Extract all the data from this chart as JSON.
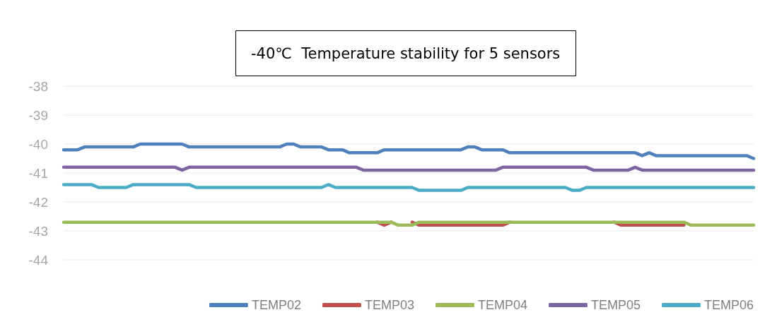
{
  "chart_data": {
    "type": "line",
    "title": "-40℃  Temperature stability for 5 sensors",
    "categories": [
      null,
      null,
      null,
      null,
      null,
      null,
      null,
      null,
      null,
      null,
      null,
      null,
      null,
      null,
      null,
      null,
      null,
      null,
      null,
      null,
      null,
      null,
      null,
      null,
      null,
      null,
      null,
      null,
      null,
      null,
      null,
      null,
      null,
      null,
      null,
      null,
      null,
      null,
      null,
      null,
      null,
      null,
      null,
      null,
      null,
      null,
      null,
      null,
      null,
      null,
      null,
      null,
      null,
      null,
      null,
      null,
      null,
      null,
      null,
      null,
      null,
      null,
      null,
      null,
      null,
      null,
      null,
      null,
      null,
      null,
      null,
      null,
      null,
      null,
      null,
      null,
      null,
      null,
      null,
      null,
      null,
      null,
      null,
      null,
      null,
      null,
      null,
      null,
      null,
      null,
      null,
      null,
      null,
      null,
      null,
      null,
      null,
      null,
      null,
      null
    ],
    "series": [
      {
        "name": "TEMP02",
        "color": "#4f81bd",
        "values": [
          -40.2,
          -40.2,
          -40.2,
          -40.1,
          -40.1,
          -40.1,
          -40.1,
          -40.1,
          -40.1,
          -40.1,
          -40.1,
          -40,
          -40,
          -40,
          -40,
          -40,
          -40,
          -40,
          -40.1,
          -40.1,
          -40.1,
          -40.1,
          -40.1,
          -40.1,
          -40.1,
          -40.1,
          -40.1,
          -40.1,
          -40.1,
          -40.1,
          -40.1,
          -40.1,
          -40,
          -40,
          -40.1,
          -40.1,
          -40.1,
          -40.1,
          -40.2,
          -40.2,
          -40.2,
          -40.3,
          -40.3,
          -40.3,
          -40.3,
          -40.3,
          -40.2,
          -40.2,
          -40.2,
          -40.2,
          -40.2,
          -40.2,
          -40.2,
          -40.2,
          -40.2,
          -40.2,
          -40.2,
          -40.2,
          -40.1,
          -40.1,
          -40.2,
          -40.2,
          -40.2,
          -40.2,
          -40.3,
          -40.3,
          -40.3,
          -40.3,
          -40.3,
          -40.3,
          -40.3,
          -40.3,
          -40.3,
          -40.3,
          -40.3,
          -40.3,
          -40.3,
          -40.3,
          -40.3,
          -40.3,
          -40.3,
          -40.3,
          -40.3,
          -40.4,
          -40.3,
          -40.4,
          -40.4,
          -40.4,
          -40.4,
          -40.4,
          -40.4,
          -40.4,
          -40.4,
          -40.4,
          -40.4,
          -40.4,
          -40.4,
          -40.4,
          -40.4,
          -40.5
        ]
      },
      {
        "name": "TEMP03",
        "color": "#c0504d",
        "values": [
          null,
          null,
          null,
          null,
          null,
          null,
          null,
          null,
          null,
          null,
          null,
          null,
          null,
          null,
          null,
          null,
          null,
          null,
          null,
          null,
          null,
          null,
          null,
          null,
          null,
          null,
          null,
          null,
          null,
          null,
          null,
          null,
          null,
          null,
          null,
          null,
          null,
          null,
          null,
          null,
          null,
          null,
          null,
          null,
          null,
          -42.7,
          -42.8,
          -42.7,
          null,
          null,
          -42.7,
          -42.8,
          -42.8,
          -42.8,
          -42.8,
          -42.8,
          -42.8,
          -42.8,
          -42.8,
          -42.8,
          -42.8,
          -42.8,
          -42.8,
          -42.8,
          -42.7,
          null,
          null,
          null,
          null,
          null,
          null,
          null,
          null,
          null,
          null,
          null,
          null,
          null,
          null,
          -42.7,
          -42.8,
          -42.8,
          -42.8,
          -42.8,
          -42.8,
          -42.8,
          -42.8,
          -42.8,
          -42.8,
          -42.8,
          null,
          null,
          null,
          null,
          null,
          null,
          null,
          null,
          null,
          null
        ]
      },
      {
        "name": "TEMP04",
        "color": "#9bbb59",
        "values": [
          -42.7,
          -42.7,
          -42.7,
          -42.7,
          -42.7,
          -42.7,
          -42.7,
          -42.7,
          -42.7,
          -42.7,
          -42.7,
          -42.7,
          -42.7,
          -42.7,
          -42.7,
          -42.7,
          -42.7,
          -42.7,
          -42.7,
          -42.7,
          -42.7,
          -42.7,
          -42.7,
          -42.7,
          -42.7,
          -42.7,
          -42.7,
          -42.7,
          -42.7,
          -42.7,
          -42.7,
          -42.7,
          -42.7,
          -42.7,
          -42.7,
          -42.7,
          -42.7,
          -42.7,
          -42.7,
          -42.7,
          -42.7,
          -42.7,
          -42.7,
          -42.7,
          -42.7,
          -42.7,
          -42.7,
          -42.7,
          -42.8,
          -42.8,
          -42.8,
          -42.7,
          -42.7,
          -42.7,
          -42.7,
          -42.7,
          -42.7,
          -42.7,
          -42.7,
          -42.7,
          -42.7,
          -42.7,
          -42.7,
          -42.7,
          -42.7,
          -42.7,
          -42.7,
          -42.7,
          -42.7,
          -42.7,
          -42.7,
          -42.7,
          -42.7,
          -42.7,
          -42.7,
          -42.7,
          -42.7,
          -42.7,
          -42.7,
          -42.7,
          -42.7,
          -42.7,
          -42.7,
          -42.7,
          -42.7,
          -42.7,
          -42.7,
          -42.7,
          -42.7,
          -42.7,
          -42.8,
          -42.8,
          -42.8,
          -42.8,
          -42.8,
          -42.8,
          -42.8,
          -42.8,
          -42.8,
          -42.8
        ]
      },
      {
        "name": "TEMP05",
        "color": "#8064a2",
        "values": [
          -40.8,
          -40.8,
          -40.8,
          -40.8,
          -40.8,
          -40.8,
          -40.8,
          -40.8,
          -40.8,
          -40.8,
          -40.8,
          -40.8,
          -40.8,
          -40.8,
          -40.8,
          -40.8,
          -40.8,
          -40.9,
          -40.8,
          -40.8,
          -40.8,
          -40.8,
          -40.8,
          -40.8,
          -40.8,
          -40.8,
          -40.8,
          -40.8,
          -40.8,
          -40.8,
          -40.8,
          -40.8,
          -40.8,
          -40.8,
          -40.8,
          -40.8,
          -40.8,
          -40.8,
          -40.8,
          -40.8,
          -40.8,
          -40.8,
          -40.8,
          -40.9,
          -40.9,
          -40.9,
          -40.9,
          -40.9,
          -40.9,
          -40.9,
          -40.9,
          -40.9,
          -40.9,
          -40.9,
          -40.9,
          -40.9,
          -40.9,
          -40.9,
          -40.9,
          -40.9,
          -40.9,
          -40.9,
          -40.9,
          -40.8,
          -40.8,
          -40.8,
          -40.8,
          -40.8,
          -40.8,
          -40.8,
          -40.8,
          -40.8,
          -40.8,
          -40.8,
          -40.8,
          -40.8,
          -40.9,
          -40.9,
          -40.9,
          -40.9,
          -40.9,
          -40.9,
          -40.8,
          -40.9,
          -40.9,
          -40.9,
          -40.9,
          -40.9,
          -40.9,
          -40.9,
          -40.9,
          -40.9,
          -40.9,
          -40.9,
          -40.9,
          -40.9,
          -40.9,
          -40.9,
          -40.9,
          -40.9
        ]
      },
      {
        "name": "TEMP06",
        "color": "#4bacc6",
        "values": [
          -41.4,
          -41.4,
          -41.4,
          -41.4,
          -41.4,
          -41.5,
          -41.5,
          -41.5,
          -41.5,
          -41.5,
          -41.4,
          -41.4,
          -41.4,
          -41.4,
          -41.4,
          -41.4,
          -41.4,
          -41.4,
          -41.4,
          -41.5,
          -41.5,
          -41.5,
          -41.5,
          -41.5,
          -41.5,
          -41.5,
          -41.5,
          -41.5,
          -41.5,
          -41.5,
          -41.5,
          -41.5,
          -41.5,
          -41.5,
          -41.5,
          -41.5,
          -41.5,
          -41.5,
          -41.4,
          -41.5,
          -41.5,
          -41.5,
          -41.5,
          -41.5,
          -41.5,
          -41.5,
          -41.5,
          -41.5,
          -41.5,
          -41.5,
          -41.5,
          -41.6,
          -41.6,
          -41.6,
          -41.6,
          -41.6,
          -41.6,
          -41.6,
          -41.5,
          -41.5,
          -41.5,
          -41.5,
          -41.5,
          -41.5,
          -41.5,
          -41.5,
          -41.5,
          -41.5,
          -41.5,
          -41.5,
          -41.5,
          -41.5,
          -41.5,
          -41.6,
          -41.6,
          -41.5,
          -41.5,
          -41.5,
          -41.5,
          -41.5,
          -41.5,
          -41.5,
          -41.5,
          -41.5,
          -41.5,
          -41.5,
          -41.5,
          -41.5,
          -41.5,
          -41.5,
          -41.5,
          -41.5,
          -41.5,
          -41.5,
          -41.5,
          -41.5,
          -41.5,
          -41.5,
          -41.5,
          -41.5
        ]
      }
    ],
    "ylim": [
      -44,
      -38
    ],
    "yticks": [
      -44,
      -43,
      -42,
      -41,
      -40,
      -39,
      -38
    ],
    "grid": "y",
    "legend": "bottom",
    "marker": "none",
    "line_style": "solid"
  }
}
